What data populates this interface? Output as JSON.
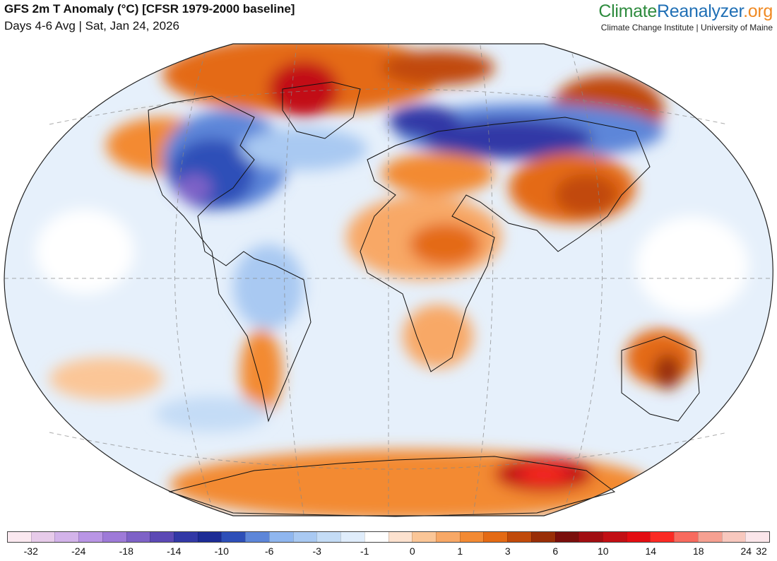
{
  "header": {
    "title": "GFS 2m T Anomaly (°C) [CFSR 1979-2000 baseline]",
    "subtitle": "Days 4-6 Avg | Sat, Jan 24, 2026"
  },
  "brand": {
    "name_part1": "Climate",
    "name_part2": "Reanalyzer",
    "name_part3": ".org",
    "tagline": "Climate Change Institute | University of Maine",
    "colors": {
      "part1": "#2e8b3e",
      "part2": "#1f6fb5",
      "part3": "#f08a24"
    }
  },
  "map": {
    "projection": "Winkel Tripel",
    "background_color": "#ffffff"
  },
  "legend": {
    "colors": [
      "#fbe9f0",
      "#e7cbea",
      "#d3b3ea",
      "#b995e5",
      "#9e7ad8",
      "#7e62c7",
      "#5c49b5",
      "#3238a6",
      "#1c2b95",
      "#2d4fb8",
      "#5d86d9",
      "#8fb6ef",
      "#a9c9f2",
      "#c4dcf6",
      "#e0edfb",
      "#ffffff",
      "#fde2cf",
      "#fbc697",
      "#f8a866",
      "#f38a33",
      "#e46a14",
      "#c14a0a",
      "#992e07",
      "#7a0f0c",
      "#a10e12",
      "#c20f14",
      "#e30d12",
      "#fb2a24",
      "#f86a5e",
      "#f6a091",
      "#f8c8be",
      "#fbe6ea"
    ],
    "labels": [
      "-32",
      "-24",
      "-18",
      "-14",
      "-10",
      "-6",
      "-3",
      "-1",
      "0",
      "1",
      "3",
      "6",
      "10",
      "14",
      "18",
      "24",
      "32"
    ]
  }
}
